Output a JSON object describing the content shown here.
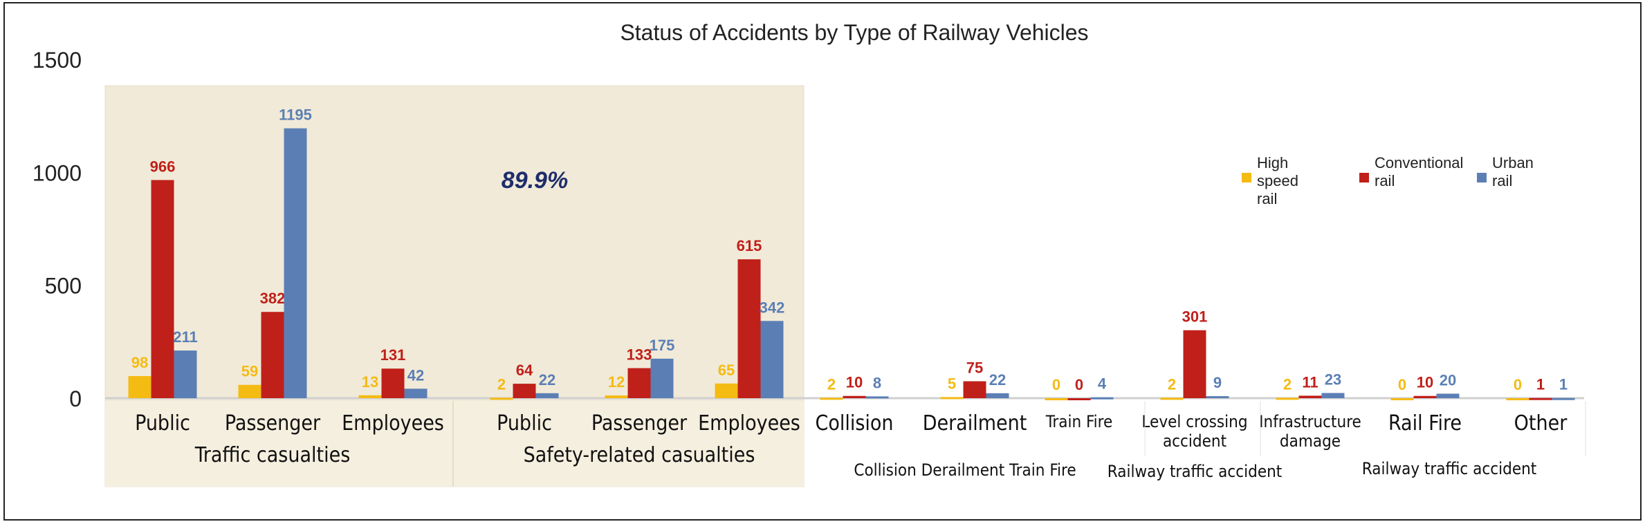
{
  "chart_data": {
    "type": "bar",
    "title": "Status of Accidents by Type of Railway Vehicles",
    "xlabel": "",
    "ylabel": "",
    "ylim": [
      0,
      1500
    ],
    "yticks": [
      "0",
      "500",
      "1000",
      "1500"
    ],
    "ytick_values": [
      0,
      500,
      1000,
      1500
    ],
    "grid": false,
    "legend_position": "top-right",
    "annotation": "89.9%",
    "categories": [
      "Public",
      "Passenger",
      "Employees",
      "Public",
      "Passenger",
      "Employees",
      "Collision",
      "Derailment",
      "Train  Fire",
      "Level  crossing accident",
      "Infrastructure damage",
      "Rail  Fire",
      "Other"
    ],
    "group_labels": [
      "Traffic  casualties",
      "Safety-related  casualties"
    ],
    "secondary_labels": [
      "Collision  Derailment   Train  Fire",
      "Railway  traffic  accident",
      "Railway  traffic  accident"
    ],
    "series": [
      {
        "name": "High speed rail",
        "color": "#f4bb13",
        "label_color": "#f4bb13",
        "values": [
          98,
          59,
          13,
          2,
          12,
          65,
          2,
          5,
          0,
          2,
          2,
          0,
          0
        ]
      },
      {
        "name": "Conventional rail",
        "color": "#c0201a",
        "label_color": "#c0201a",
        "values": [
          966,
          382,
          131,
          64,
          133,
          615,
          10,
          75,
          0,
          301,
          11,
          10,
          1
        ]
      },
      {
        "name": "Urban rail",
        "color": "#5b7fb5",
        "label_color": "#5b7fb5",
        "values": [
          211,
          1195,
          42,
          22,
          175,
          342,
          8,
          22,
          4,
          9,
          23,
          20,
          1
        ]
      }
    ],
    "legend": [
      {
        "lines": [
          "High",
          "speed",
          "rail"
        ]
      },
      {
        "lines": [
          "Conventional",
          "rail"
        ]
      },
      {
        "lines": [
          "Urban",
          "rail"
        ]
      }
    ]
  }
}
